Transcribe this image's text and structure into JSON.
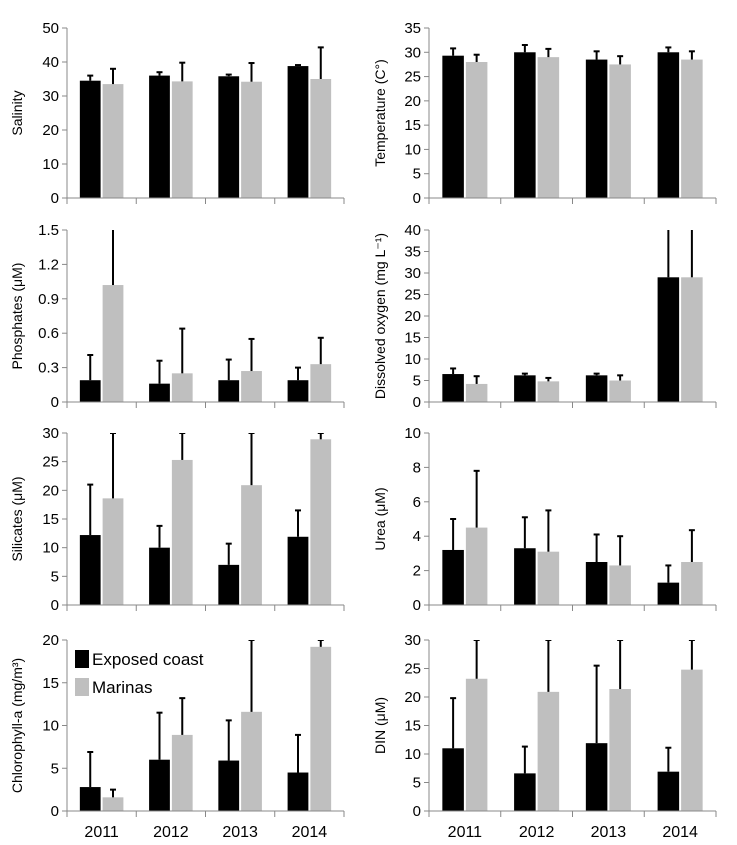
{
  "figure": {
    "categories": [
      "2011",
      "2012",
      "2013",
      "2014"
    ],
    "legend": [
      {
        "label": "Exposed coast",
        "color": "#000000"
      },
      {
        "label": "Marinas",
        "color": "#bfbfbf"
      }
    ]
  },
  "chart_data": [
    {
      "type": "bar",
      "ylabel": "Salinity",
      "ylim": [
        0,
        50
      ],
      "yticks": [
        0,
        10,
        20,
        30,
        40,
        50
      ],
      "ytick_labels": [
        "0",
        "10",
        "20",
        "30",
        "40",
        "50"
      ],
      "categories": [
        "2011",
        "2012",
        "2013",
        "2014"
      ],
      "series": [
        {
          "name": "Exposed coast",
          "values": [
            34.5,
            36,
            35.8,
            38.8
          ],
          "errors": [
            1.5,
            1,
            0.5,
            0.3
          ]
        },
        {
          "name": "Marinas",
          "values": [
            33.5,
            34.3,
            34.2,
            35
          ],
          "errors": [
            4.5,
            5.5,
            5.5,
            9.3
          ]
        }
      ]
    },
    {
      "type": "bar",
      "ylabel": "Temperature (C°)",
      "ylim": [
        0,
        35
      ],
      "yticks": [
        0,
        5,
        10,
        15,
        20,
        25,
        30,
        35
      ],
      "ytick_labels": [
        "0",
        "5",
        "10",
        "15",
        "20",
        "25",
        "30",
        "35"
      ],
      "categories": [
        "2011",
        "2012",
        "2013",
        "2014"
      ],
      "series": [
        {
          "name": "Exposed coast",
          "values": [
            29.3,
            30,
            28.5,
            30
          ],
          "errors": [
            1.5,
            1.5,
            1.7,
            1
          ]
        },
        {
          "name": "Marinas",
          "values": [
            28,
            29,
            27.5,
            28.5
          ],
          "errors": [
            1.5,
            1.7,
            1.7,
            1.7
          ]
        }
      ]
    },
    {
      "type": "bar",
      "ylabel": "Phosphates (μM)",
      "ylim": [
        0,
        1.5
      ],
      "yticks": [
        0,
        0.3,
        0.6,
        0.9,
        1.2,
        1.5
      ],
      "ytick_labels": [
        "0",
        "0.3",
        "0.6",
        "0.9",
        "1.2",
        "1.5"
      ],
      "categories": [
        "2011",
        "2012",
        "2013",
        "2014"
      ],
      "series": [
        {
          "name": "Exposed coast",
          "values": [
            0.19,
            0.16,
            0.19,
            0.19
          ],
          "errors": [
            0.22,
            0.2,
            0.18,
            0.11
          ]
        },
        {
          "name": "Marinas",
          "values": [
            1.02,
            0.25,
            0.27,
            0.33
          ],
          "errors": [
            0.5,
            0.39,
            0.28,
            0.23
          ]
        }
      ]
    },
    {
      "type": "bar",
      "ylabel": "Dissolved oxygen (mg L⁻¹)",
      "ylim": [
        0,
        40
      ],
      "yticks": [
        0,
        5,
        10,
        15,
        20,
        25,
        30,
        35,
        40
      ],
      "ytick_labels": [
        "0",
        "5",
        "10",
        "15",
        "20",
        "25",
        "30",
        "35",
        "40"
      ],
      "categories": [
        "2011",
        "2012",
        "2013",
        "2014"
      ],
      "series": [
        {
          "name": "Exposed coast",
          "values": [
            6.5,
            6.2,
            6.2,
            29
          ],
          "errors": [
            1.3,
            0.4,
            0.4,
            12
          ]
        },
        {
          "name": "Marinas",
          "values": [
            4.2,
            4.8,
            5,
            29
          ],
          "errors": [
            1.8,
            0.8,
            1.2,
            12
          ]
        }
      ]
    },
    {
      "type": "bar",
      "ylabel": "Silicates (μM)",
      "ylim": [
        0,
        30
      ],
      "yticks": [
        0,
        5,
        10,
        15,
        20,
        25,
        30
      ],
      "ytick_labels": [
        "0",
        "5",
        "10",
        "15",
        "20",
        "25",
        "30"
      ],
      "categories": [
        "2011",
        "2012",
        "2013",
        "2014"
      ],
      "series": [
        {
          "name": "Exposed coast",
          "values": [
            12.2,
            10,
            7,
            11.9
          ],
          "errors": [
            8.8,
            3.8,
            3.7,
            4.6
          ]
        },
        {
          "name": "Marinas",
          "values": [
            18.6,
            25.3,
            20.9,
            28.9
          ],
          "errors": [
            11.4,
            4.7,
            9.1,
            1.1
          ]
        }
      ]
    },
    {
      "type": "bar",
      "ylabel": "Urea (μM)",
      "ylim": [
        0,
        10
      ],
      "yticks": [
        0,
        2,
        4,
        6,
        8,
        10
      ],
      "ytick_labels": [
        "0",
        "2",
        "4",
        "6",
        "8",
        "10"
      ],
      "categories": [
        "2011",
        "2012",
        "2013",
        "2014"
      ],
      "series": [
        {
          "name": "Exposed coast",
          "values": [
            3.2,
            3.3,
            2.5,
            1.3
          ],
          "errors": [
            1.8,
            1.8,
            1.6,
            1
          ]
        },
        {
          "name": "Marinas",
          "values": [
            4.5,
            3.1,
            2.3,
            2.5
          ],
          "errors": [
            3.3,
            2.4,
            1.7,
            1.85
          ]
        }
      ]
    },
    {
      "type": "bar",
      "ylabel": "Chlorophyll-a (mg/m³)",
      "ylim": [
        0,
        20
      ],
      "yticks": [
        0,
        5,
        10,
        15,
        20
      ],
      "ytick_labels": [
        "0",
        "5",
        "10",
        "15",
        "20"
      ],
      "categories": [
        "2011",
        "2012",
        "2013",
        "2014"
      ],
      "legend_position": "top-left",
      "series": [
        {
          "name": "Exposed coast",
          "values": [
            2.8,
            6,
            5.9,
            4.5
          ],
          "errors": [
            4.1,
            5.5,
            4.7,
            4.4
          ]
        },
        {
          "name": "Marinas",
          "values": [
            1.6,
            8.9,
            11.6,
            19.2
          ],
          "errors": [
            0.9,
            4.3,
            8.4,
            0.8
          ]
        }
      ]
    },
    {
      "type": "bar",
      "ylabel": "DIN (μM)",
      "ylim": [
        0,
        30
      ],
      "yticks": [
        0,
        5,
        10,
        15,
        20,
        25,
        30
      ],
      "ytick_labels": [
        "0",
        "5",
        "10",
        "15",
        "20",
        "25",
        "30"
      ],
      "categories": [
        "2011",
        "2012",
        "2013",
        "2014"
      ],
      "series": [
        {
          "name": "Exposed coast",
          "values": [
            11,
            6.6,
            11.9,
            6.9
          ],
          "errors": [
            8.8,
            4.7,
            13.6,
            4.2
          ]
        },
        {
          "name": "Marinas",
          "values": [
            23.2,
            20.9,
            21.4,
            24.8
          ],
          "errors": [
            6.8,
            9.1,
            8.6,
            5.2
          ]
        }
      ]
    }
  ]
}
